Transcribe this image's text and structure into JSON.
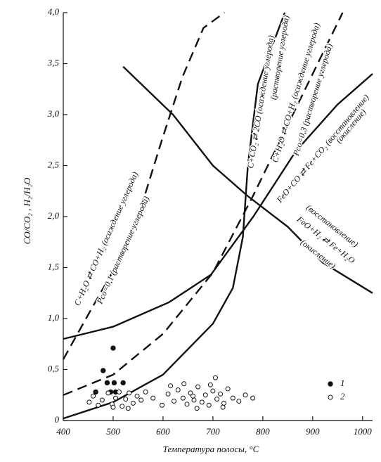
{
  "chart_data": {
    "type": "scatter",
    "x_label": "Температура полосы, °С",
    "y_label": "CO/CO₂ , H₂/H₂O",
    "xlim": [
      400,
      1020
    ],
    "ylim": [
      0,
      4.0
    ],
    "xticks": [
      400,
      500,
      600,
      700,
      800,
      900,
      1000
    ],
    "yticks": [
      0,
      {
        "value": 0.5,
        "label": "0,5"
      },
      {
        "value": 1.0,
        "label": "1,0"
      },
      {
        "value": 1.5,
        "label": "1,5"
      },
      {
        "value": 2.0,
        "label": "2,0"
      },
      {
        "value": 2.5,
        "label": "2,5"
      },
      {
        "value": 3.0,
        "label": "3,0"
      },
      {
        "value": 3.5,
        "label": "3,5"
      },
      {
        "value": 4.0,
        "label": "4,0"
      }
    ],
    "curves": [
      {
        "label": [
          "FeO+CO ⇄ Fe+CO₂ (восстановление)",
          "(окисление)"
        ],
        "dashed": false,
        "x": [
          400,
          500,
          612,
          696,
          781,
          866,
          950,
          1020
        ],
        "y": [
          0.8,
          0.92,
          1.16,
          1.43,
          2.0,
          2.64,
          3.1,
          3.4
        ]
      },
      {
        "label": [
          "C+H₂O ⇄ CO+H₂ (осаждение углерода)",
          "Pco=0,1 (растворение углерода)"
        ],
        "dashed": true,
        "x": [
          400,
          456,
          512,
          554,
          597,
          639,
          681,
          723
        ],
        "y": [
          0.6,
          1.09,
          1.57,
          2.06,
          2.74,
          3.37,
          3.85,
          4.0
        ]
      },
      {
        "label": [
          "C+H₂O ⇄ CO+H₂ (осаждение углерода)",
          "Pco=0,3 (растворение углерода)"
        ],
        "dashed": true,
        "x": [
          400,
          500,
          600,
          700,
          780,
          850,
          900,
          960
        ],
        "y": [
          0.25,
          0.45,
          0.85,
          1.45,
          2.2,
          2.9,
          3.4,
          4.0
        ]
      },
      {
        "label": [
          "C+CO₂ ⇄ 2CO (осаждение углерода)",
          "(растворение углерода)"
        ],
        "dashed": false,
        "x": [
          400,
          500,
          600,
          700,
          740,
          760,
          770,
          790,
          844
        ],
        "y": [
          0.02,
          0.18,
          0.45,
          0.95,
          1.3,
          1.8,
          2.5,
          3.3,
          4.0
        ]
      },
      {
        "label": [
          "(восстановление)",
          "FeO+H₂ ⇄ Fe+H₂O",
          "(окисление)"
        ],
        "dashed": false,
        "x": [
          520,
          620,
          700,
          770,
          850,
          920,
          1020
        ],
        "y": [
          3.47,
          3.0,
          2.5,
          2.2,
          1.9,
          1.55,
          1.25
        ]
      }
    ],
    "series": [
      {
        "name": "1",
        "filled": true,
        "color": "#111111",
        "x": [
          465,
          480,
          488,
          495,
          500,
          502,
          505,
          520
        ],
        "y": [
          0.28,
          0.49,
          0.37,
          0.28,
          0.71,
          0.37,
          0.28,
          0.37
        ]
      },
      {
        "name": "2",
        "filled": false,
        "color": "#111111",
        "x": [
          452,
          460,
          470,
          478,
          490,
          498,
          505,
          512,
          518,
          525,
          532,
          540,
          548,
          556,
          565,
          580,
          598,
          610,
          622,
          630,
          640,
          648,
          655,
          662,
          670,
          678,
          685,
          692,
          700,
          708,
          715,
          722,
          730,
          740,
          752,
          765,
          780,
          642,
          668,
          695,
          720,
          615,
          705,
          660,
          500,
          530
        ],
        "y": [
          0.18,
          0.24,
          0.15,
          0.2,
          0.27,
          0.16,
          0.22,
          0.28,
          0.14,
          0.21,
          0.27,
          0.17,
          0.24,
          0.2,
          0.28,
          0.22,
          0.15,
          0.26,
          0.19,
          0.3,
          0.22,
          0.16,
          0.27,
          0.2,
          0.33,
          0.18,
          0.25,
          0.15,
          0.29,
          0.21,
          0.26,
          0.17,
          0.31,
          0.22,
          0.19,
          0.25,
          0.22,
          0.36,
          0.12,
          0.35,
          0.13,
          0.34,
          0.42,
          0.24,
          0.13,
          0.12
        ]
      }
    ]
  }
}
